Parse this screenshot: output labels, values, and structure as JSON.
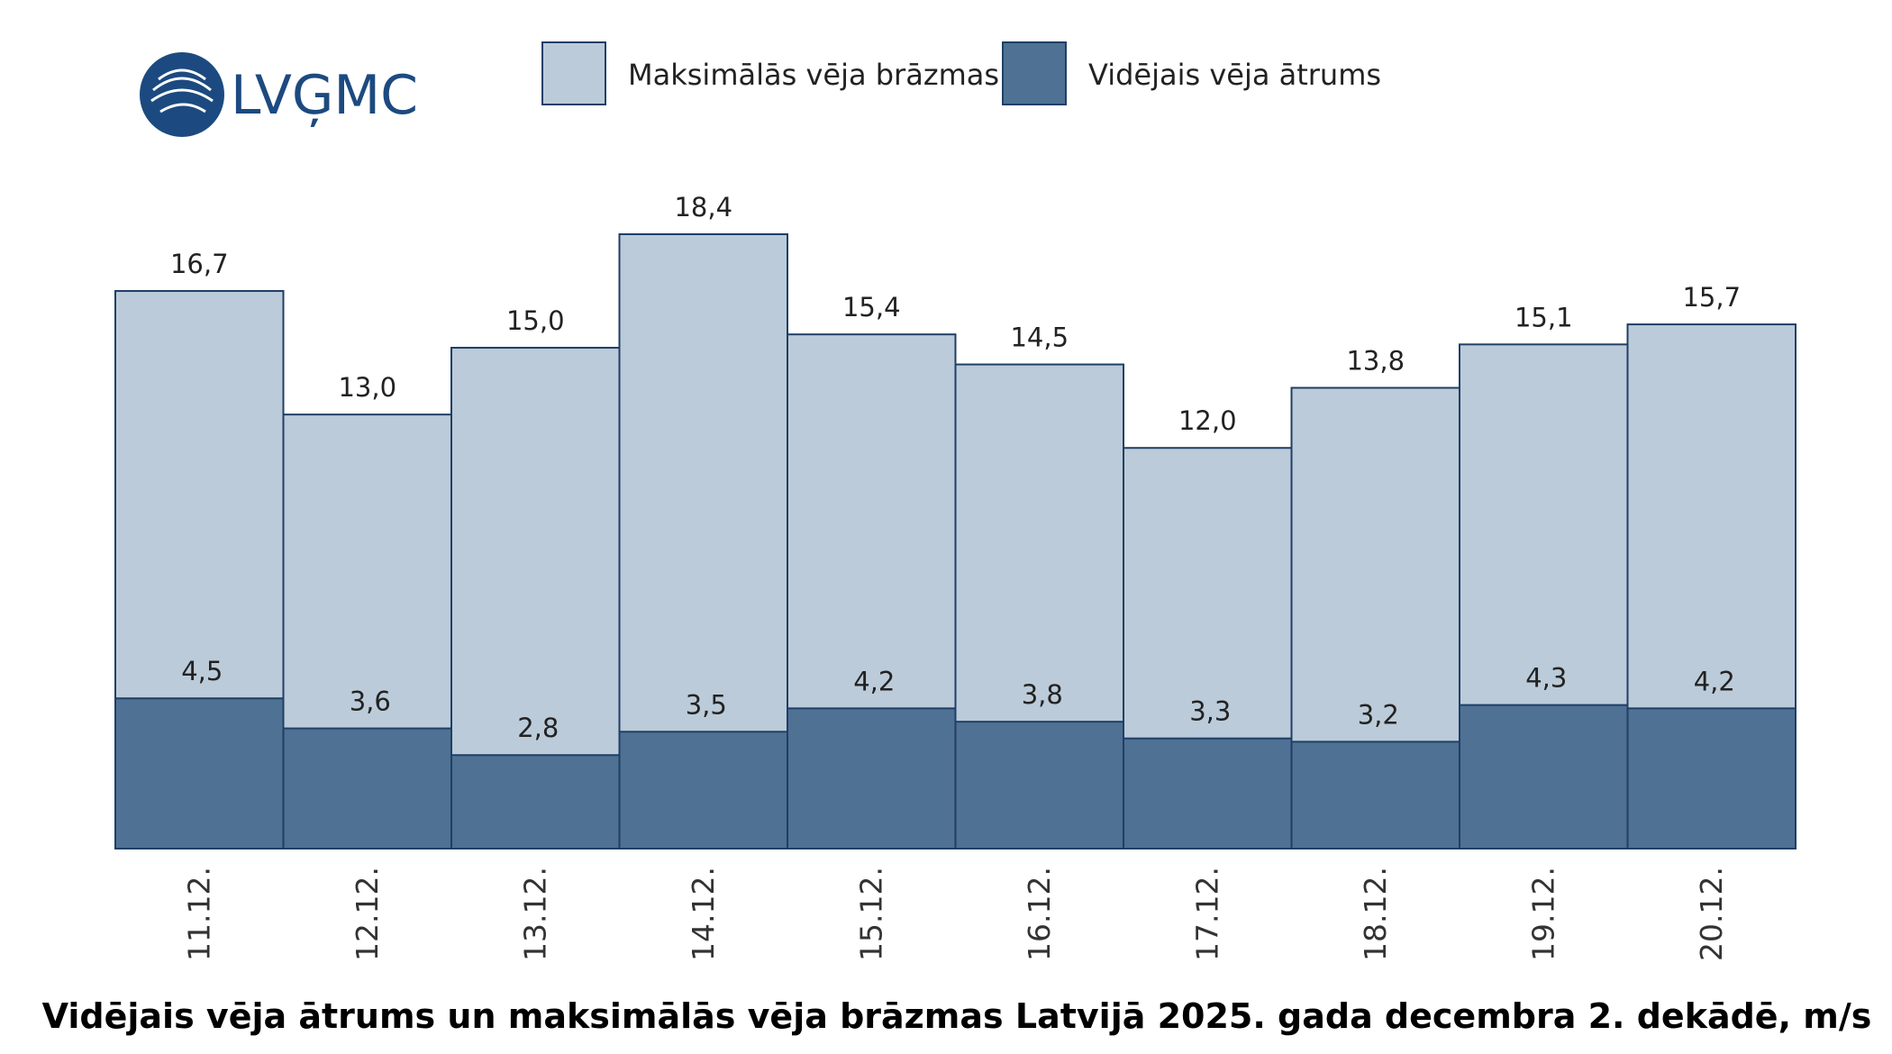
{
  "logo": "LVĢMC",
  "chart_data": {
    "type": "bar",
    "title": "Vidējais vēja ātrums un maksimālās vēja brāzmas Latvijā 2025. gada decembra 2. dekādē, m/s",
    "categories": [
      "11.12.",
      "12.12.",
      "13.12.",
      "14.12.",
      "15.12.",
      "16.12.",
      "17.12.",
      "18.12.",
      "19.12.",
      "20.12."
    ],
    "series": [
      {
        "name": "Maksimālās vēja brāzmas",
        "color": "#bccbd9",
        "values": [
          16.7,
          13.0,
          15.0,
          18.4,
          15.4,
          14.5,
          12.0,
          13.8,
          15.1,
          15.7
        ],
        "value_labels": [
          "16,7",
          "13,0",
          "15,0",
          "18,4",
          "15,4",
          "14,5",
          "12,0",
          "13,8",
          "15,1",
          "15,7"
        ]
      },
      {
        "name": "Vidējais vēja ātrums",
        "color": "#4f7193",
        "values": [
          4.5,
          3.6,
          2.8,
          3.5,
          4.2,
          3.8,
          3.3,
          3.2,
          4.3,
          4.2
        ],
        "value_labels": [
          "4,5",
          "3,6",
          "2,8",
          "3,5",
          "4,2",
          "3,8",
          "3,3",
          "3,2",
          "4,3",
          "4,2"
        ]
      }
    ]
  }
}
